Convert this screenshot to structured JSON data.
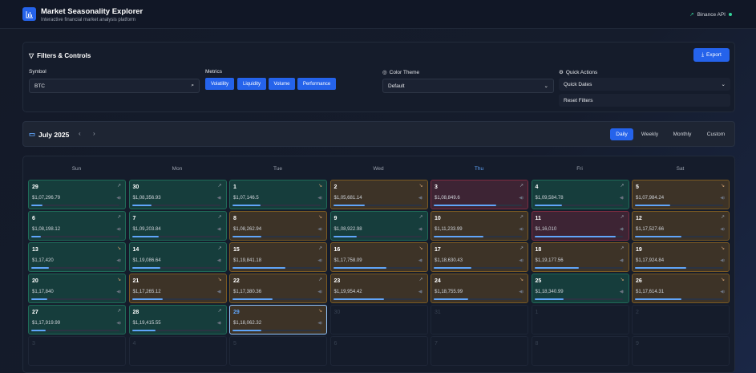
{
  "header": {
    "title": "Market Seasonality Explorer",
    "subtitle": "Interactive financial market analysis platform",
    "api_status": "Binance API"
  },
  "filters": {
    "title": "Filters & Controls",
    "export_label": "Export",
    "symbol_label": "Symbol",
    "symbol_value": "BTC",
    "metrics_label": "Metrics",
    "metrics": [
      "Volatility",
      "Liquidity",
      "Volume",
      "Performance"
    ],
    "theme_label": "Color Theme",
    "theme_value": "Default",
    "quick_label": "Quick Actions",
    "quick_dates": "Quick Dates",
    "reset": "Reset Filters"
  },
  "nav": {
    "month": "July 2025",
    "views": [
      "Daily",
      "Weekly",
      "Monthly",
      "Custom"
    ],
    "active_view": "Daily"
  },
  "weekdays": [
    "Sun",
    "Mon",
    "Tue",
    "Wed",
    "Thu",
    "Fri",
    "Sat"
  ],
  "colors": {
    "accent": "#2563eb",
    "green": "#163d3c",
    "amber": "#3d3327",
    "red": "#3d2434"
  },
  "days": [
    {
      "d": "29",
      "p": "$1,07,296.79",
      "s": "green",
      "v": 0.13,
      "t": "up"
    },
    {
      "d": "30",
      "p": "$1,08,356.93",
      "s": "green",
      "v": 0.22,
      "t": "up"
    },
    {
      "d": "1",
      "p": "$1,07,146.5",
      "s": "green",
      "v": 0.32,
      "t": "down"
    },
    {
      "d": "2",
      "p": "$1,05,681.14",
      "s": "amber",
      "v": 0.36,
      "t": "down"
    },
    {
      "d": "3",
      "p": "$1,08,849.6",
      "s": "red",
      "v": 0.71,
      "t": "up"
    },
    {
      "d": "4",
      "p": "$1,09,584.78",
      "s": "green",
      "v": 0.31,
      "t": "up"
    },
    {
      "d": "5",
      "p": "$1,07,984.24",
      "s": "amber",
      "v": 0.4,
      "t": "down"
    },
    {
      "d": "6",
      "p": "$1,08,198.12",
      "s": "green",
      "v": 0.11,
      "t": "up"
    },
    {
      "d": "7",
      "p": "$1,09,203.84",
      "s": "green",
      "v": 0.3,
      "t": "up"
    },
    {
      "d": "8",
      "p": "$1,08,262.94",
      "s": "amber",
      "v": 0.33,
      "t": "down"
    },
    {
      "d": "9",
      "p": "$1,08,922.98",
      "s": "green",
      "v": 0.27,
      "t": "up"
    },
    {
      "d": "10",
      "p": "$1,11,233.99",
      "s": "amber",
      "v": 0.56,
      "t": "up"
    },
    {
      "d": "11",
      "p": "$1,16,010",
      "s": "red",
      "v": 0.92,
      "t": "up"
    },
    {
      "d": "12",
      "p": "$1,17,527.66",
      "s": "amber",
      "v": 0.53,
      "t": "up"
    },
    {
      "d": "13",
      "p": "$1,17,420",
      "s": "green",
      "v": 0.2,
      "t": "down"
    },
    {
      "d": "14",
      "p": "$1,19,086.64",
      "s": "green",
      "v": 0.32,
      "t": "up"
    },
    {
      "d": "15",
      "p": "$1,19,841.18",
      "s": "amber",
      "v": 0.6,
      "t": "up"
    },
    {
      "d": "16",
      "p": "$1,17,758.09",
      "s": "amber",
      "v": 0.6,
      "t": "down"
    },
    {
      "d": "17",
      "p": "$1,18,630.43",
      "s": "amber",
      "v": 0.43,
      "t": "up"
    },
    {
      "d": "18",
      "p": "$1,19,177.56",
      "s": "amber",
      "v": 0.5,
      "t": "up"
    },
    {
      "d": "19",
      "p": "$1,17,924.84",
      "s": "amber",
      "v": 0.58,
      "t": "down"
    },
    {
      "d": "20",
      "p": "$1,17,840",
      "s": "green",
      "v": 0.18,
      "t": "down"
    },
    {
      "d": "21",
      "p": "$1,17,265.12",
      "s": "amber",
      "v": 0.35,
      "t": "down"
    },
    {
      "d": "22",
      "p": "$1,17,380.36",
      "s": "amber",
      "v": 0.45,
      "t": "up"
    },
    {
      "d": "23",
      "p": "$1,19,954.42",
      "s": "amber",
      "v": 0.58,
      "t": "up"
    },
    {
      "d": "24",
      "p": "$1,18,755.99",
      "s": "amber",
      "v": 0.39,
      "t": "down"
    },
    {
      "d": "25",
      "p": "$1,18,340.99",
      "s": "green",
      "v": 0.33,
      "t": "down"
    },
    {
      "d": "26",
      "p": "$1,17,614.31",
      "s": "amber",
      "v": 0.53,
      "t": "down"
    },
    {
      "d": "27",
      "p": "$1,17,919.99",
      "s": "green",
      "v": 0.16,
      "t": "up"
    },
    {
      "d": "28",
      "p": "$1,19,415.55",
      "s": "green",
      "v": 0.27,
      "t": "up"
    },
    {
      "d": "29",
      "p": "$1,18,062.32",
      "s": "amber",
      "v": 0.33,
      "t": "down",
      "selected": true
    },
    {
      "d": "30",
      "s": "empty"
    },
    {
      "d": "31",
      "s": "empty"
    },
    {
      "d": "1",
      "s": "empty"
    },
    {
      "d": "2",
      "s": "empty"
    },
    {
      "d": "3",
      "s": "empty"
    },
    {
      "d": "4",
      "s": "empty"
    },
    {
      "d": "5",
      "s": "empty"
    },
    {
      "d": "6",
      "s": "empty"
    },
    {
      "d": "7",
      "s": "empty"
    },
    {
      "d": "8",
      "s": "empty"
    },
    {
      "d": "9",
      "s": "empty"
    }
  ]
}
